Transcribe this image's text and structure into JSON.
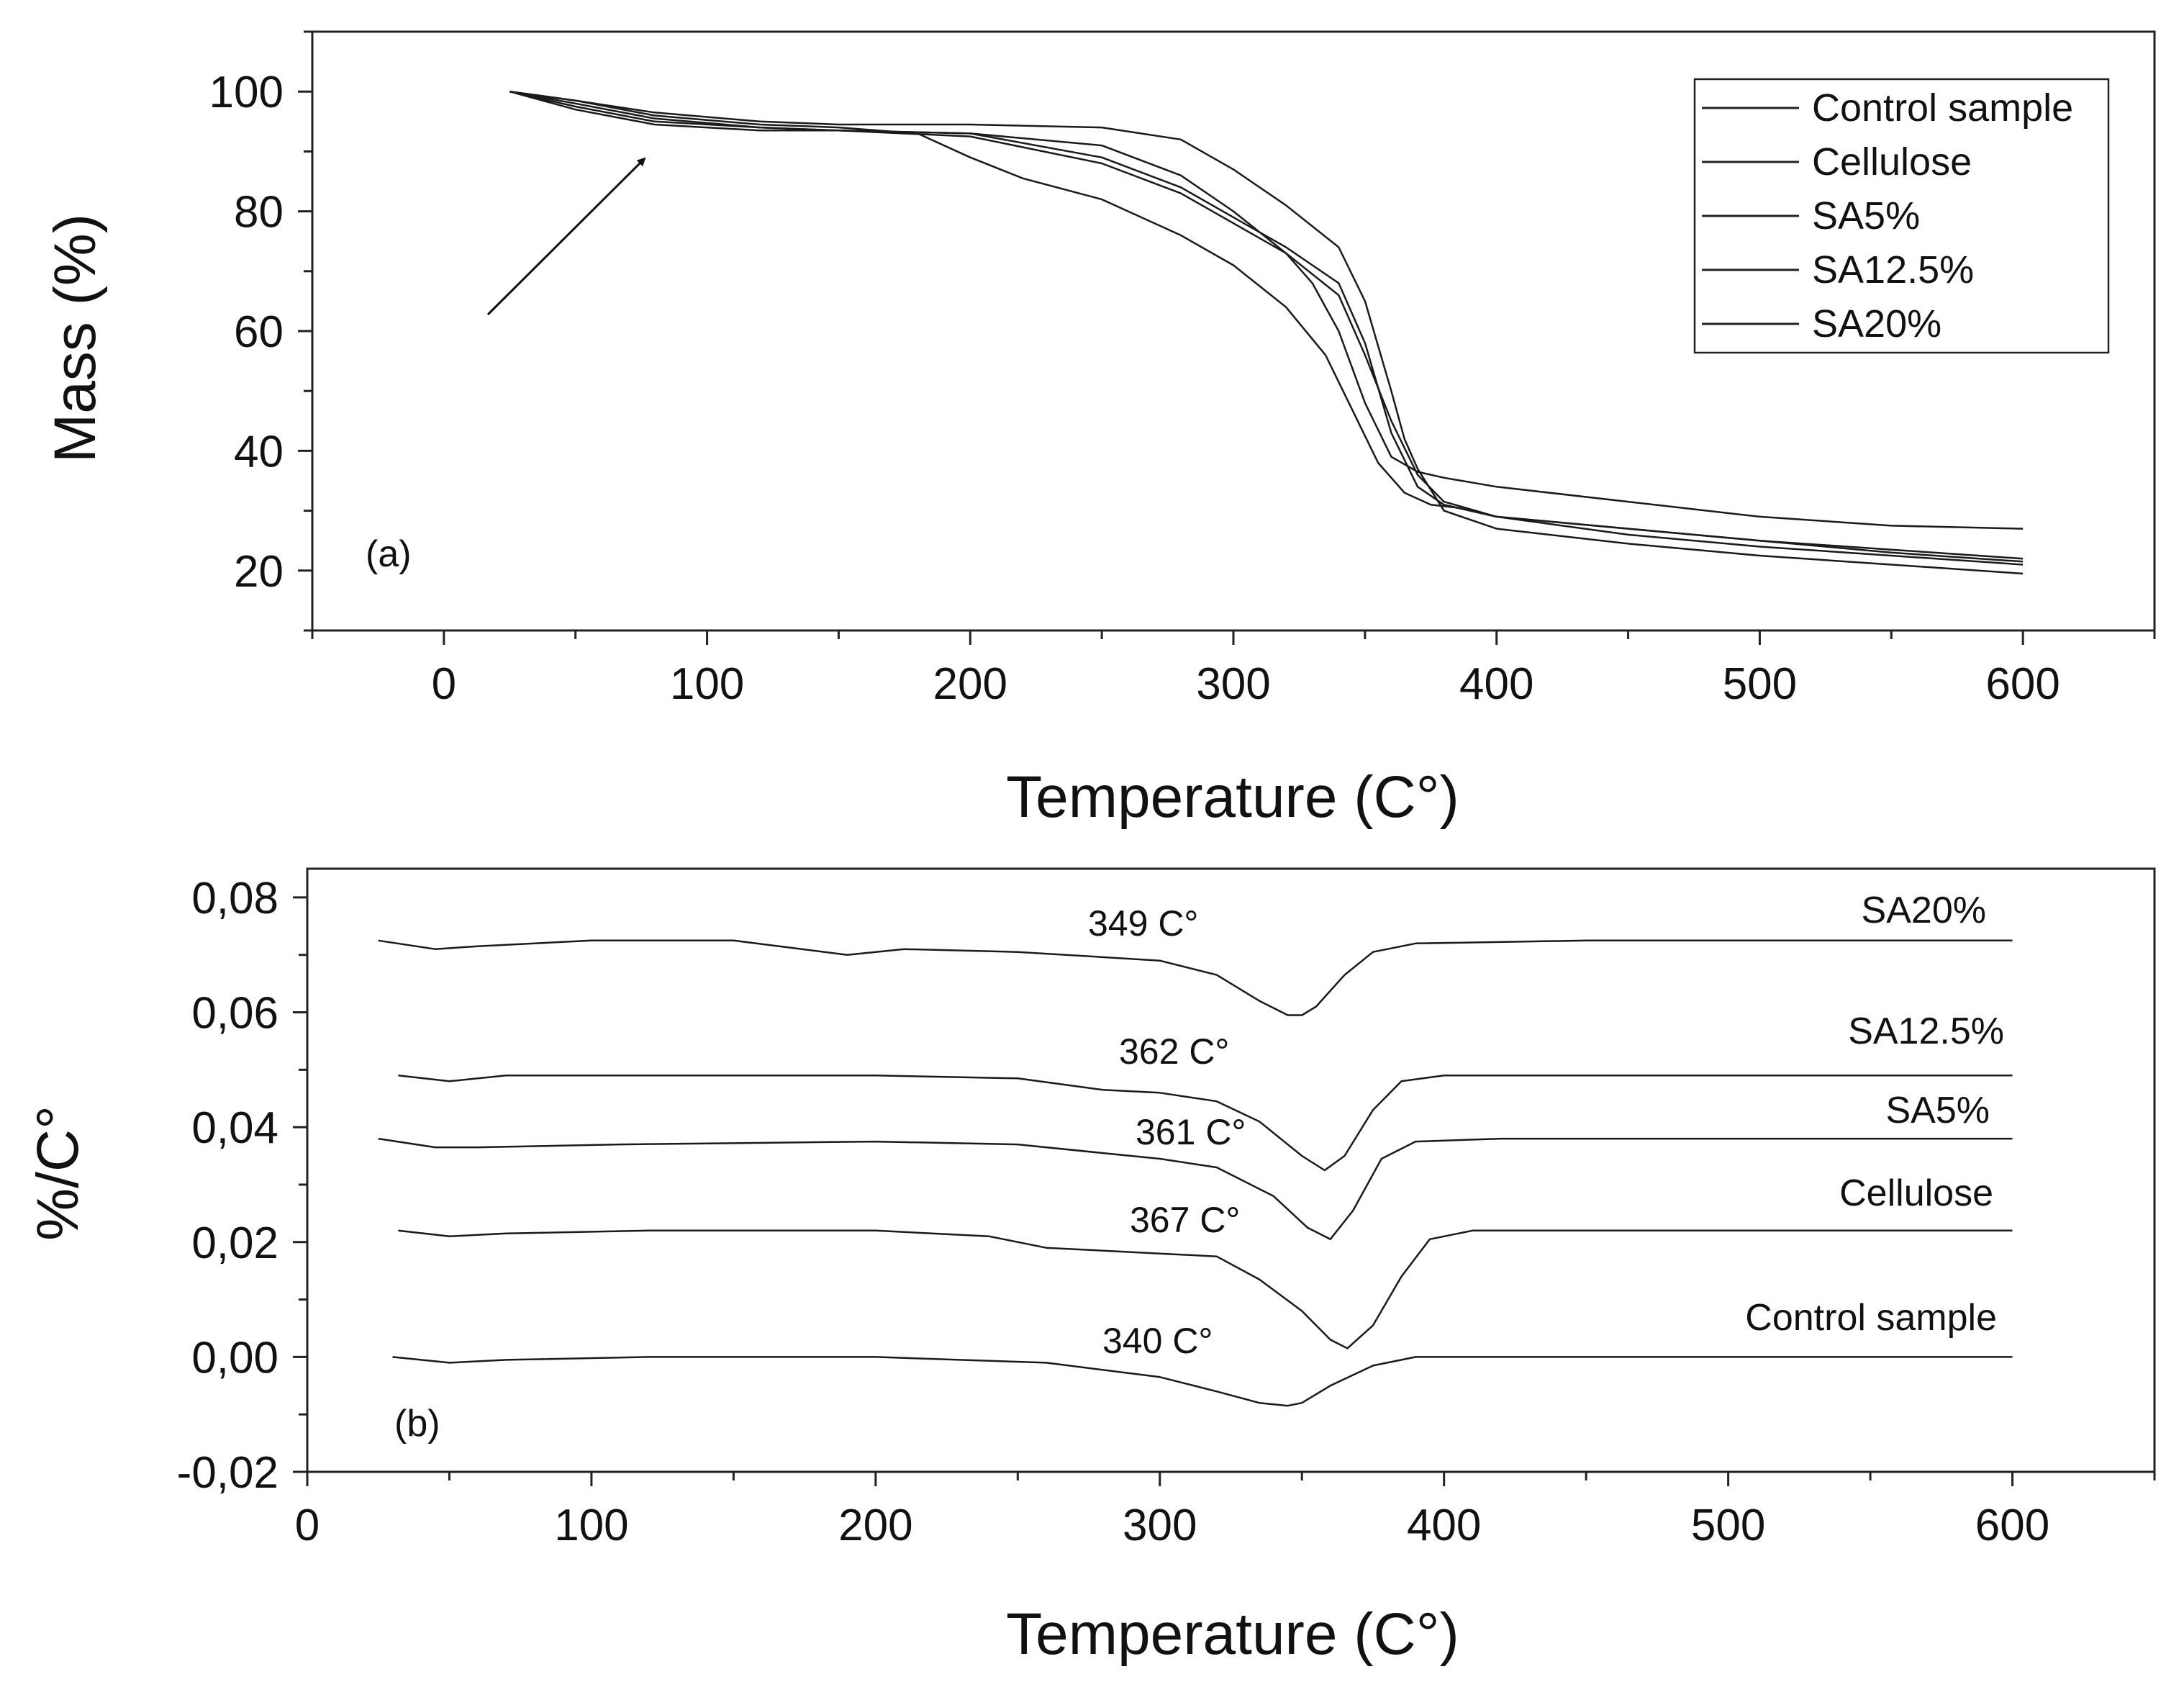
{
  "chart_data": [
    {
      "panel": "a",
      "type": "line",
      "panel_label": "(a)",
      "xlabel": "Temperature (C°)",
      "ylabel": "Mass (%)",
      "xlim": [
        -50,
        650
      ],
      "ylim": [
        10,
        110
      ],
      "xticks": [
        0,
        100,
        200,
        300,
        400,
        500,
        600
      ],
      "yticks": [
        20,
        40,
        60,
        80,
        100
      ],
      "legend_position": "top-right",
      "legend": [
        "Control sample",
        "Cellulose",
        "SA5%",
        "SA12.5%",
        "SA20%"
      ],
      "annotation": "arrow pointing to initial mass loss near 80 C°",
      "series": [
        {
          "name": "Control sample",
          "x": [
            25,
            50,
            80,
            120,
            150,
            180,
            200,
            220,
            250,
            280,
            300,
            320,
            335,
            345,
            355,
            365,
            375,
            385,
            400,
            450,
            500,
            550,
            600
          ],
          "y": [
            100,
            98.5,
            96,
            94.5,
            94,
            93,
            89,
            85.5,
            82,
            76,
            71,
            64,
            56,
            47,
            38,
            33,
            31,
            30.5,
            29,
            26,
            24,
            22.5,
            21
          ]
        },
        {
          "name": "Cellulose",
          "x": [
            25,
            50,
            80,
            120,
            150,
            200,
            250,
            280,
            300,
            320,
            340,
            350,
            360,
            365,
            370,
            380,
            400,
            450,
            500,
            550,
            600
          ],
          "y": [
            100,
            98.5,
            96.5,
            95,
            94.5,
            94.5,
            94,
            92,
            87,
            81,
            74,
            65,
            50,
            42,
            37,
            30,
            27,
            24.5,
            22.5,
            21,
            19.5
          ]
        },
        {
          "name": "SA5%",
          "x": [
            25,
            50,
            80,
            120,
            150,
            200,
            250,
            280,
            300,
            320,
            340,
            350,
            360,
            370,
            380,
            400,
            450,
            500,
            550,
            600
          ],
          "y": [
            100,
            98,
            95.5,
            94,
            93.5,
            93,
            89,
            84,
            79,
            74,
            68,
            58,
            43,
            34,
            31,
            29,
            27,
            25,
            23.5,
            22
          ]
        },
        {
          "name": "SA12.5%",
          "x": [
            25,
            50,
            80,
            120,
            150,
            200,
            250,
            280,
            300,
            320,
            340,
            350,
            360,
            370,
            380,
            400,
            450,
            500,
            550,
            600
          ],
          "y": [
            100,
            97.5,
            95,
            94,
            93.5,
            92.5,
            88,
            83,
            78,
            73,
            66,
            56,
            45,
            36,
            31.5,
            29,
            27,
            25,
            23,
            21.5
          ]
        },
        {
          "name": "SA20%",
          "x": [
            25,
            50,
            80,
            120,
            150,
            200,
            250,
            280,
            300,
            320,
            330,
            340,
            350,
            360,
            370,
            380,
            400,
            450,
            500,
            550,
            600
          ],
          "y": [
            100,
            97,
            94.5,
            93.5,
            93.5,
            93,
            91,
            86,
            80,
            73,
            68,
            60,
            48,
            39,
            36.5,
            35.5,
            34,
            31.5,
            29,
            27.5,
            27
          ]
        }
      ]
    },
    {
      "panel": "b",
      "type": "line",
      "panel_label": "(b)",
      "xlabel": "Temperature (C°)",
      "ylabel": "%/C°",
      "xlim": [
        0,
        650
      ],
      "ylim": [
        -0.02,
        0.085
      ],
      "xticks": [
        0,
        100,
        200,
        300,
        400,
        500,
        600
      ],
      "yticks": [
        -0.02,
        0.0,
        0.02,
        0.04,
        0.06,
        0.08
      ],
      "ytick_labels": [
        "-0,02",
        "0,00",
        "0,02",
        "0,04",
        "0,06",
        "0,08"
      ],
      "series": [
        {
          "name": "SA20%",
          "peak_label": "349 C°",
          "x": [
            25,
            45,
            60,
            100,
            150,
            190,
            210,
            250,
            300,
            320,
            335,
            345,
            350,
            355,
            365,
            375,
            390,
            450,
            500,
            550,
            600
          ],
          "y": [
            0.0725,
            0.071,
            0.0715,
            0.0725,
            0.0725,
            0.07,
            0.071,
            0.0705,
            0.069,
            0.0665,
            0.062,
            0.0595,
            0.0595,
            0.061,
            0.0665,
            0.0705,
            0.072,
            0.0725,
            0.0725,
            0.0725,
            0.0725
          ]
        },
        {
          "name": "SA12.5%",
          "peak_label": "362 C°",
          "x": [
            32,
            50,
            70,
            120,
            200,
            250,
            280,
            300,
            320,
            335,
            350,
            358,
            365,
            375,
            385,
            400,
            450,
            500,
            550,
            600
          ],
          "y": [
            0.049,
            0.048,
            0.049,
            0.049,
            0.049,
            0.0485,
            0.0465,
            0.046,
            0.0445,
            0.041,
            0.035,
            0.0325,
            0.035,
            0.043,
            0.048,
            0.049,
            0.049,
            0.049,
            0.049,
            0.049
          ]
        },
        {
          "name": "SA5%",
          "peak_label": "361 C°",
          "x": [
            25,
            45,
            60,
            110,
            200,
            250,
            280,
            300,
            320,
            340,
            352,
            360,
            368,
            378,
            390,
            420,
            500,
            550,
            600
          ],
          "y": [
            0.038,
            0.0365,
            0.0365,
            0.037,
            0.0375,
            0.037,
            0.0355,
            0.0345,
            0.033,
            0.028,
            0.0225,
            0.0205,
            0.0255,
            0.0345,
            0.0375,
            0.038,
            0.038,
            0.038,
            0.038
          ]
        },
        {
          "name": "Cellulose",
          "peak_label": "367 C°",
          "x": [
            32,
            50,
            70,
            120,
            200,
            240,
            260,
            300,
            320,
            335,
            350,
            360,
            366,
            375,
            385,
            395,
            410,
            450,
            500,
            550,
            600
          ],
          "y": [
            0.022,
            0.021,
            0.0215,
            0.022,
            0.022,
            0.021,
            0.019,
            0.018,
            0.0175,
            0.0135,
            0.008,
            0.003,
            0.0015,
            0.0055,
            0.014,
            0.0205,
            0.022,
            0.022,
            0.022,
            0.022,
            0.022
          ]
        },
        {
          "name": "Control sample",
          "peak_label": "340 C°",
          "x": [
            30,
            50,
            70,
            120,
            200,
            260,
            300,
            320,
            335,
            345,
            350,
            360,
            375,
            390,
            450,
            500,
            550,
            600
          ],
          "y": [
            0.0,
            -0.001,
            -0.0005,
            0.0,
            0.0,
            -0.001,
            -0.0035,
            -0.006,
            -0.008,
            -0.0085,
            -0.008,
            -0.005,
            -0.0015,
            0.0,
            0.0,
            0.0,
            0.0,
            0.0
          ]
        }
      ]
    }
  ]
}
